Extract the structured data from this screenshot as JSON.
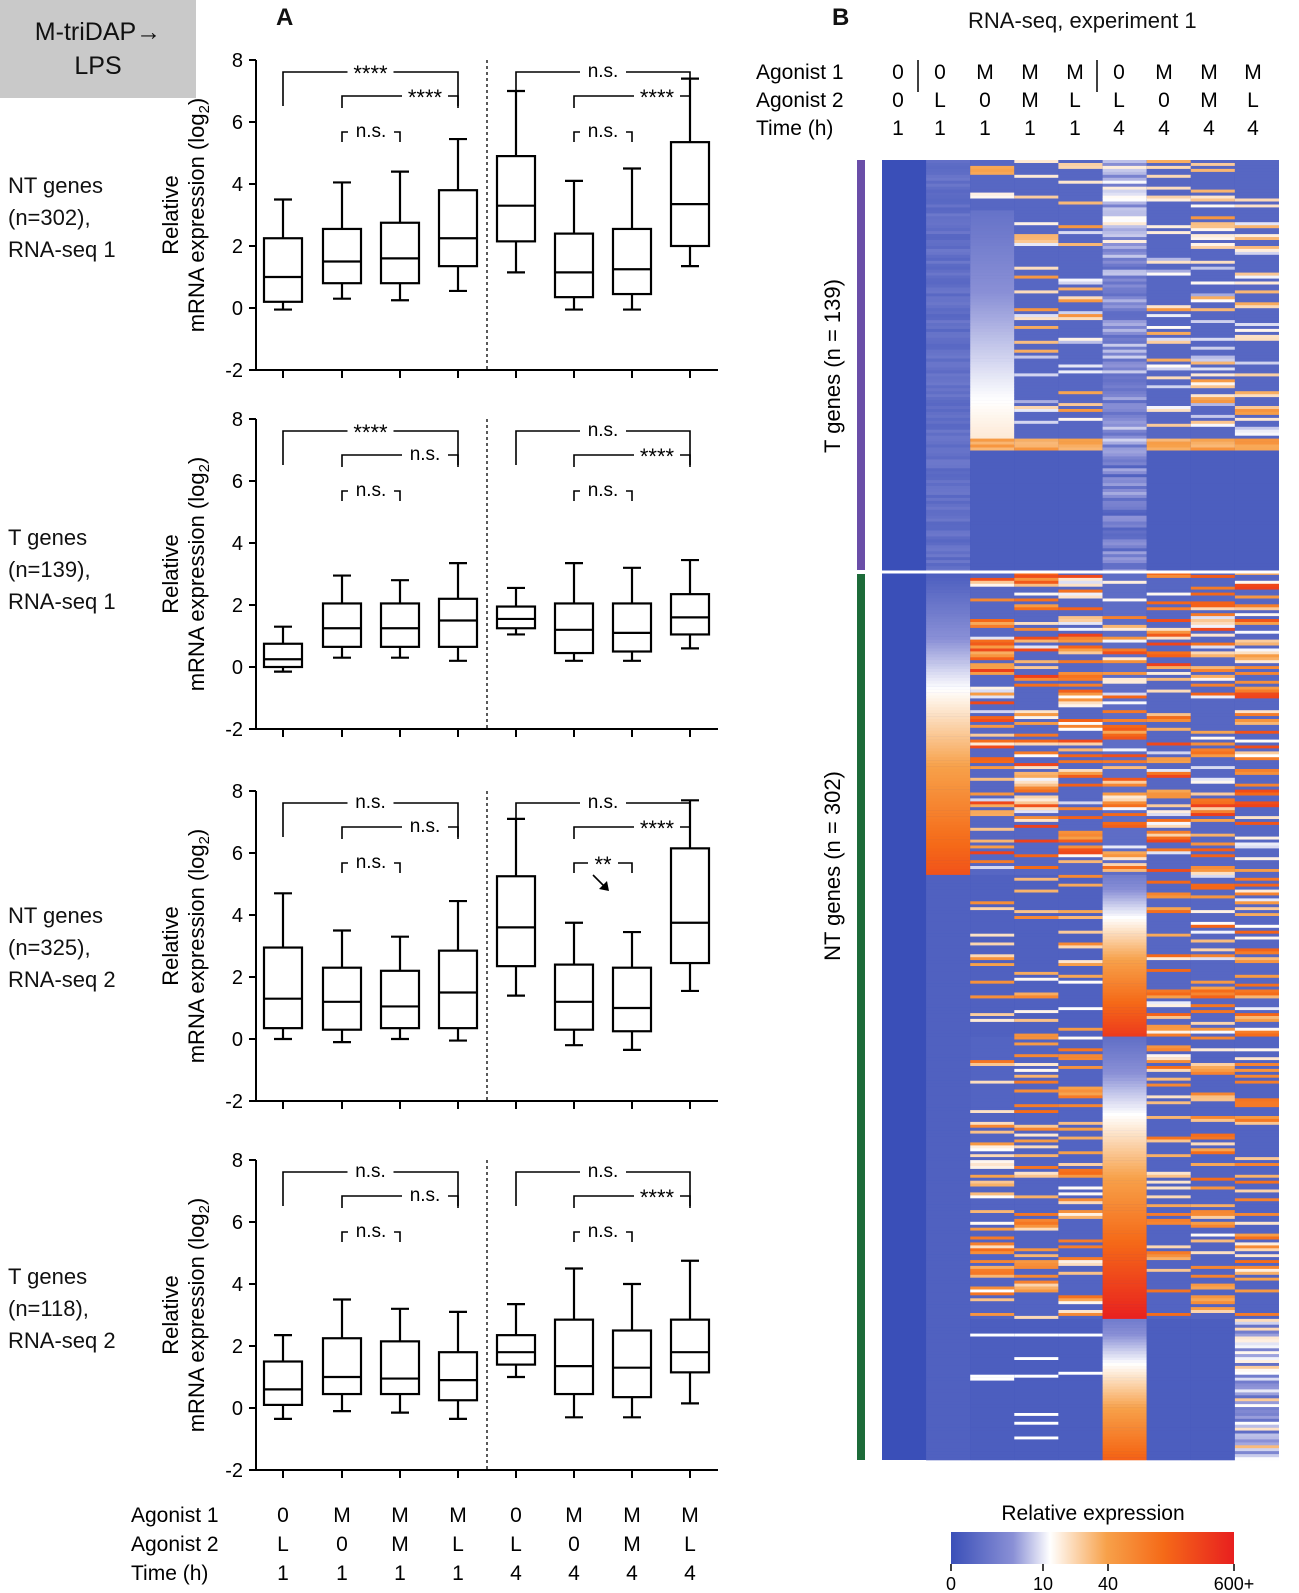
{
  "title_box": {
    "line1": "M-triDAP→",
    "line2": "LPS"
  },
  "panel_a_label": "A",
  "panel_b_label": "B",
  "row_labels": [
    [
      "NT genes",
      "(n=302),",
      "RNA-seq 1"
    ],
    [
      "T genes",
      "(n=139),",
      "RNA-seq 1"
    ],
    [
      "NT genes",
      "(n=325),",
      "RNA-seq 2"
    ],
    [
      "T genes",
      "(n=118),",
      "RNA-seq 2"
    ]
  ],
  "conditions": {
    "row_labels": [
      "Agonist 1",
      "Agonist 2",
      "Time (h)"
    ],
    "agonist1": [
      "0",
      "M",
      "M",
      "M",
      "0",
      "M",
      "M",
      "M"
    ],
    "agonist2": [
      "L",
      "0",
      "M",
      "L",
      "L",
      "0",
      "M",
      "L"
    ],
    "time": [
      "1",
      "1",
      "1",
      "1",
      "4",
      "4",
      "4",
      "4"
    ]
  },
  "heatmap": {
    "title": "RNA-seq, experiment 1",
    "condition_labels": [
      "Agonist 1",
      "Agonist 2",
      "Time (h)"
    ],
    "agonist1": [
      "0",
      "0",
      "M",
      "M",
      "M",
      "0",
      "M",
      "M",
      "M"
    ],
    "agonist2": [
      "0",
      "L",
      "0",
      "M",
      "L",
      "L",
      "0",
      "M",
      "L"
    ],
    "time": [
      "1",
      "1",
      "1",
      "1",
      "1",
      "4",
      "4",
      "4",
      "4"
    ],
    "groups": [
      {
        "label": "T genes (n = 139)",
        "n": 139,
        "color": "#6a4ea8"
      },
      {
        "label": "NT genes (n = 302)",
        "n": 302,
        "color": "#1d6b39"
      }
    ],
    "colorbar": {
      "title": "Relative expression",
      "ticks": [
        "0",
        "10",
        "40",
        "600+"
      ],
      "colors": [
        "#3a4fb8",
        "#8a90d6",
        "#ffffff",
        "#f7a14a",
        "#f56a18",
        "#e81f1f"
      ]
    }
  },
  "chart_data": [
    {
      "type": "boxplot",
      "panel": "NT genes (n=302), RNA-seq 1",
      "ylabel": "Relative mRNA expression (log2)",
      "ylim": [
        -2,
        8
      ],
      "yticks": [
        -2,
        0,
        2,
        4,
        6,
        8
      ],
      "boxes": [
        {
          "whislo": -0.05,
          "q1": 0.2,
          "med": 1.0,
          "q3": 2.25,
          "whishi": 3.5
        },
        {
          "whislo": 0.3,
          "q1": 0.8,
          "med": 1.5,
          "q3": 2.55,
          "whishi": 4.05
        },
        {
          "whislo": 0.25,
          "q1": 0.8,
          "med": 1.6,
          "q3": 2.75,
          "whishi": 4.4
        },
        {
          "whislo": 0.55,
          "q1": 1.35,
          "med": 2.25,
          "q3": 3.8,
          "whishi": 5.45
        },
        {
          "whislo": 1.15,
          "q1": 2.15,
          "med": 3.3,
          "q3": 4.9,
          "whishi": 7.0
        },
        {
          "whislo": -0.05,
          "q1": 0.35,
          "med": 1.15,
          "q3": 2.4,
          "whishi": 4.1
        },
        {
          "whislo": -0.05,
          "q1": 0.45,
          "med": 1.25,
          "q3": 2.55,
          "whishi": 4.5
        },
        {
          "whislo": 1.35,
          "q1": 2.0,
          "med": 3.35,
          "q3": 5.35,
          "whishi": 7.4
        }
      ],
      "annotations": [
        {
          "from": 0,
          "to": 3,
          "label": "****",
          "level": 3
        },
        {
          "from": 1,
          "to": 3,
          "label": "****",
          "level": 2
        },
        {
          "from": 1,
          "to": 2,
          "label": "n.s.",
          "level": 1
        },
        {
          "from": 4,
          "to": 7,
          "label": "n.s.",
          "level": 3
        },
        {
          "from": 5,
          "to": 7,
          "label": "****",
          "level": 2
        },
        {
          "from": 5,
          "to": 6,
          "label": "n.s.",
          "level": 1
        }
      ]
    },
    {
      "type": "boxplot",
      "panel": "T genes (n=139), RNA-seq 1",
      "ylabel": "Relative mRNA expression (log2)",
      "ylim": [
        -2,
        8
      ],
      "yticks": [
        -2,
        0,
        2,
        4,
        6,
        8
      ],
      "boxes": [
        {
          "whislo": -0.15,
          "q1": 0.0,
          "med": 0.25,
          "q3": 0.75,
          "whishi": 1.3
        },
        {
          "whislo": 0.3,
          "q1": 0.65,
          "med": 1.25,
          "q3": 2.05,
          "whishi": 2.95
        },
        {
          "whislo": 0.3,
          "q1": 0.65,
          "med": 1.25,
          "q3": 2.05,
          "whishi": 2.8
        },
        {
          "whislo": 0.2,
          "q1": 0.65,
          "med": 1.5,
          "q3": 2.2,
          "whishi": 3.35
        },
        {
          "whislo": 1.05,
          "q1": 1.25,
          "med": 1.55,
          "q3": 1.95,
          "whishi": 2.55
        },
        {
          "whislo": 0.2,
          "q1": 0.45,
          "med": 1.2,
          "q3": 2.05,
          "whishi": 3.35
        },
        {
          "whislo": 0.2,
          "q1": 0.5,
          "med": 1.1,
          "q3": 2.05,
          "whishi": 3.2
        },
        {
          "whislo": 0.6,
          "q1": 1.05,
          "med": 1.6,
          "q3": 2.35,
          "whishi": 3.45
        }
      ],
      "annotations": [
        {
          "from": 0,
          "to": 3,
          "label": "****",
          "level": 3
        },
        {
          "from": 1,
          "to": 3,
          "label": "n.s.",
          "level": 2
        },
        {
          "from": 1,
          "to": 2,
          "label": "n.s.",
          "level": 1
        },
        {
          "from": 4,
          "to": 7,
          "label": "n.s.",
          "level": 3
        },
        {
          "from": 5,
          "to": 7,
          "label": "****",
          "level": 2
        },
        {
          "from": 5,
          "to": 6,
          "label": "n.s.",
          "level": 1
        }
      ]
    },
    {
      "type": "boxplot",
      "panel": "NT genes (n=325), RNA-seq 2",
      "ylabel": "Relative mRNA expression (log2)",
      "ylim": [
        -2,
        8
      ],
      "yticks": [
        -2,
        0,
        2,
        4,
        6,
        8
      ],
      "boxes": [
        {
          "whislo": 0.0,
          "q1": 0.35,
          "med": 1.3,
          "q3": 2.95,
          "whishi": 4.7
        },
        {
          "whislo": -0.1,
          "q1": 0.3,
          "med": 1.2,
          "q3": 2.3,
          "whishi": 3.5
        },
        {
          "whislo": 0.0,
          "q1": 0.35,
          "med": 1.05,
          "q3": 2.2,
          "whishi": 3.3
        },
        {
          "whislo": -0.05,
          "q1": 0.35,
          "med": 1.5,
          "q3": 2.85,
          "whishi": 4.45
        },
        {
          "whislo": 1.4,
          "q1": 2.35,
          "med": 3.6,
          "q3": 5.25,
          "whishi": 7.1
        },
        {
          "whislo": -0.2,
          "q1": 0.3,
          "med": 1.2,
          "q3": 2.4,
          "whishi": 3.75
        },
        {
          "whislo": -0.35,
          "q1": 0.25,
          "med": 1.0,
          "q3": 2.3,
          "whishi": 3.45
        },
        {
          "whislo": 1.55,
          "q1": 2.45,
          "med": 3.75,
          "q3": 6.15,
          "whishi": 7.7
        }
      ],
      "annotations": [
        {
          "from": 0,
          "to": 3,
          "label": "n.s.",
          "level": 3
        },
        {
          "from": 1,
          "to": 3,
          "label": "n.s.",
          "level": 2
        },
        {
          "from": 1,
          "to": 2,
          "label": "n.s.",
          "level": 1
        },
        {
          "from": 4,
          "to": 7,
          "label": "n.s.",
          "level": 3
        },
        {
          "from": 5,
          "to": 7,
          "label": "****",
          "level": 2
        },
        {
          "from": 5,
          "to": 6,
          "label": "**",
          "level": 1,
          "arrow": true
        }
      ]
    },
    {
      "type": "boxplot",
      "panel": "T genes (n=118), RNA-seq 2",
      "ylabel": "Relative mRNA expression (log2)",
      "ylim": [
        -2,
        8
      ],
      "yticks": [
        -2,
        0,
        2,
        4,
        6,
        8
      ],
      "boxes": [
        {
          "whislo": -0.35,
          "q1": 0.1,
          "med": 0.6,
          "q3": 1.5,
          "whishi": 2.35
        },
        {
          "whislo": -0.1,
          "q1": 0.45,
          "med": 1.0,
          "q3": 2.25,
          "whishi": 3.5
        },
        {
          "whislo": -0.15,
          "q1": 0.45,
          "med": 0.95,
          "q3": 2.15,
          "whishi": 3.2
        },
        {
          "whislo": -0.35,
          "q1": 0.25,
          "med": 0.9,
          "q3": 1.8,
          "whishi": 3.1
        },
        {
          "whislo": 1.0,
          "q1": 1.4,
          "med": 1.8,
          "q3": 2.35,
          "whishi": 3.35
        },
        {
          "whislo": -0.3,
          "q1": 0.45,
          "med": 1.35,
          "q3": 2.85,
          "whishi": 4.5
        },
        {
          "whislo": -0.3,
          "q1": 0.35,
          "med": 1.3,
          "q3": 2.5,
          "whishi": 4.0
        },
        {
          "whislo": 0.15,
          "q1": 1.15,
          "med": 1.8,
          "q3": 2.85,
          "whishi": 4.75
        }
      ],
      "annotations": [
        {
          "from": 0,
          "to": 3,
          "label": "n.s.",
          "level": 3
        },
        {
          "from": 1,
          "to": 3,
          "label": "n.s.",
          "level": 2
        },
        {
          "from": 1,
          "to": 2,
          "label": "n.s.",
          "level": 1
        },
        {
          "from": 4,
          "to": 7,
          "label": "n.s.",
          "level": 3
        },
        {
          "from": 5,
          "to": 7,
          "label": "****",
          "level": 2
        },
        {
          "from": 5,
          "to": 6,
          "label": "n.s.",
          "level": 1
        }
      ]
    }
  ]
}
